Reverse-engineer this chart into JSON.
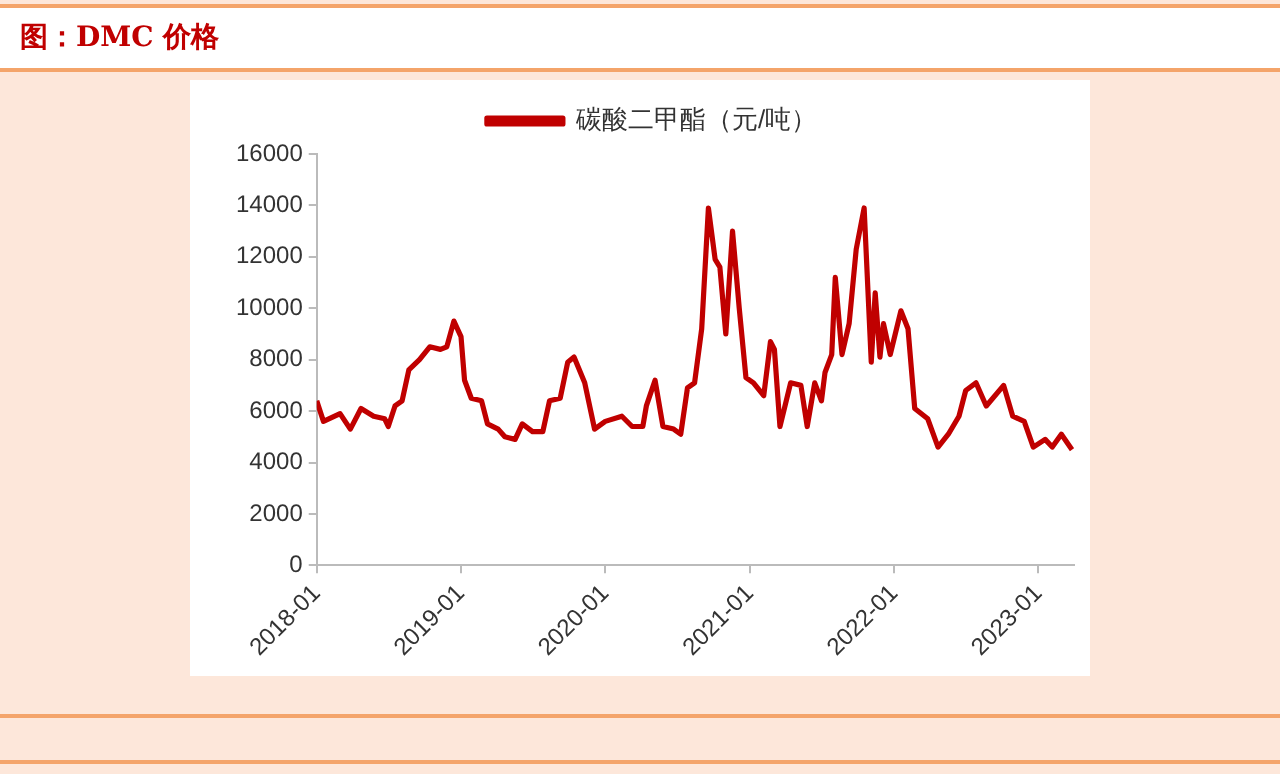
{
  "chart_data": {
    "type": "line",
    "title": "图：DMC 价格",
    "x": [
      "2018-01-01",
      "2018-01-18",
      "2018-03-01",
      "2018-03-27",
      "2018-04-23",
      "2018-05-25",
      "2018-06-22",
      "2018-07-01",
      "2018-07-18",
      "2018-08-05",
      "2018-08-22",
      "2018-09-18",
      "2018-10-14",
      "2018-11-10",
      "2018-11-26",
      "2018-12-14",
      "2019-01-01",
      "2019-01-10",
      "2019-01-27",
      "2019-02-22",
      "2019-03-09",
      "2019-04-05",
      "2019-04-22",
      "2019-05-18",
      "2019-06-05",
      "2019-07-01",
      "2019-07-27",
      "2019-08-13",
      "2019-09-09",
      "2019-09-28",
      "2019-10-14",
      "2019-11-10",
      "2019-12-05",
      "2020-01-01",
      "2020-02-12",
      "2020-03-09",
      "2020-04-05",
      "2020-04-14",
      "2020-05-06",
      "2020-05-26",
      "2020-06-22",
      "2020-07-10",
      "2020-07-27",
      "2020-08-14",
      "2020-09-01",
      "2020-09-18",
      "2020-10-05",
      "2020-10-17",
      "2020-11-01",
      "2020-11-18",
      "2020-12-05",
      "2020-12-22",
      "2021-01-10",
      "2021-02-05",
      "2021-02-22",
      "2021-03-04",
      "2021-03-18",
      "2021-04-14",
      "2021-05-10",
      "2021-05-26",
      "2021-06-14",
      "2021-07-01",
      "2021-07-10",
      "2021-07-27",
      "2021-08-05",
      "2021-08-22",
      "2021-09-09",
      "2021-09-27",
      "2021-10-17",
      "2021-11-04",
      "2021-11-14",
      "2021-11-26",
      "2021-12-05",
      "2021-12-22",
      "2022-01-18",
      "2022-02-05",
      "2022-02-22",
      "2022-03-27",
      "2022-04-22",
      "2022-05-18",
      "2022-06-14",
      "2022-07-01",
      "2022-07-27",
      "2022-08-22",
      "2022-10-05",
      "2022-10-28",
      "2022-11-26",
      "2022-12-19",
      "2023-01-18",
      "2023-02-05",
      "2023-02-28",
      "2023-03-27"
    ],
    "series": [
      {
        "name": "碳酸二甲酯（元/吨）",
        "color": "#c00000",
        "values": [
          6400,
          5600,
          5900,
          5300,
          6100,
          5800,
          5700,
          5400,
          6200,
          6400,
          7600,
          8000,
          8500,
          8400,
          8500,
          9500,
          8900,
          7200,
          6500,
          6400,
          5500,
          5300,
          5000,
          4900,
          5500,
          5200,
          5200,
          6400,
          6500,
          7900,
          8100,
          7100,
          5300,
          5600,
          5800,
          5400,
          5400,
          6200,
          7200,
          5400,
          5300,
          5100,
          6900,
          7100,
          9200,
          13900,
          11900,
          11600,
          9000,
          13000,
          10000,
          7300,
          7100,
          6600,
          8700,
          8400,
          5400,
          7100,
          7000,
          5400,
          7100,
          6400,
          7500,
          8200,
          11200,
          8200,
          9400,
          12300,
          13900,
          7900,
          10600,
          8100,
          9400,
          8200,
          9900,
          9200,
          6100,
          5700,
          4600,
          5100,
          5800,
          6800,
          7100,
          6200,
          7000,
          5800,
          5600,
          4600,
          4900,
          4600,
          5100,
          4500
        ]
      }
    ],
    "xlim": [
      "2018-01-01",
      "2023-04-01"
    ],
    "xticks": [
      {
        "value": "2018-01-01",
        "label": "2018-01"
      },
      {
        "value": "2019-01-01",
        "label": "2019-01"
      },
      {
        "value": "2020-01-01",
        "label": "2020-01"
      },
      {
        "value": "2021-01-01",
        "label": "2021-01"
      },
      {
        "value": "2022-01-01",
        "label": "2022-01"
      },
      {
        "value": "2023-01-01",
        "label": "2023-01"
      }
    ],
    "ylim": [
      0,
      16000
    ],
    "yticks": [
      0,
      2000,
      4000,
      6000,
      8000,
      10000,
      12000,
      14000,
      16000
    ],
    "legend": "top"
  }
}
